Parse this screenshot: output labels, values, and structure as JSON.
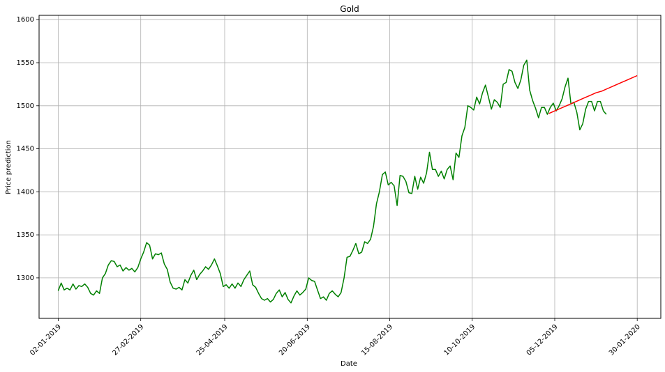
{
  "chart_data": {
    "type": "line",
    "title": "Gold",
    "xlabel": "Date",
    "ylabel": "Price prediction",
    "grid": true,
    "xlim": [
      "2018-12-20",
      "2020-02-15"
    ],
    "ylim": [
      1253,
      1605
    ],
    "x_ticks": [
      {
        "date": "2019-01-02",
        "label": "02-01-2019"
      },
      {
        "date": "2019-02-27",
        "label": "27-02-2019"
      },
      {
        "date": "2019-04-25",
        "label": "25-04-2019"
      },
      {
        "date": "2019-06-20",
        "label": "20-06-2019"
      },
      {
        "date": "2019-08-15",
        "label": "15-08-2019"
      },
      {
        "date": "2019-10-10",
        "label": "10-10-2019"
      },
      {
        "date": "2019-12-05",
        "label": "05-12-2019"
      },
      {
        "date": "2020-01-30",
        "label": "30-01-2020"
      }
    ],
    "y_ticks": [
      1300,
      1350,
      1400,
      1450,
      1500,
      1550,
      1600
    ],
    "series": [
      {
        "color": "#008000",
        "points": [
          [
            "2019-01-02",
            1285
          ],
          [
            "2019-01-04",
            1294
          ],
          [
            "2019-01-06",
            1286
          ],
          [
            "2019-01-08",
            1288
          ],
          [
            "2019-01-10",
            1286
          ],
          [
            "2019-01-12",
            1293
          ],
          [
            "2019-01-14",
            1287
          ],
          [
            "2019-01-16",
            1291
          ],
          [
            "2019-01-18",
            1290
          ],
          [
            "2019-01-20",
            1293
          ],
          [
            "2019-01-22",
            1289
          ],
          [
            "2019-01-24",
            1282
          ],
          [
            "2019-01-26",
            1280
          ],
          [
            "2019-01-28",
            1285
          ],
          [
            "2019-01-30",
            1282
          ],
          [
            "2019-02-01",
            1300
          ],
          [
            "2019-02-03",
            1305
          ],
          [
            "2019-02-05",
            1315
          ],
          [
            "2019-02-07",
            1320
          ],
          [
            "2019-02-09",
            1319
          ],
          [
            "2019-02-11",
            1313
          ],
          [
            "2019-02-13",
            1315
          ],
          [
            "2019-02-15",
            1308
          ],
          [
            "2019-02-17",
            1312
          ],
          [
            "2019-02-19",
            1309
          ],
          [
            "2019-02-21",
            1311
          ],
          [
            "2019-02-23",
            1307
          ],
          [
            "2019-02-25",
            1312
          ],
          [
            "2019-02-27",
            1322
          ],
          [
            "2019-03-01",
            1330
          ],
          [
            "2019-03-03",
            1341
          ],
          [
            "2019-03-05",
            1338
          ],
          [
            "2019-03-07",
            1322
          ],
          [
            "2019-03-09",
            1328
          ],
          [
            "2019-03-11",
            1327
          ],
          [
            "2019-03-13",
            1329
          ],
          [
            "2019-03-15",
            1316
          ],
          [
            "2019-03-17",
            1310
          ],
          [
            "2019-03-19",
            1295
          ],
          [
            "2019-03-21",
            1288
          ],
          [
            "2019-03-23",
            1287
          ],
          [
            "2019-03-25",
            1289
          ],
          [
            "2019-03-27",
            1286
          ],
          [
            "2019-03-29",
            1298
          ],
          [
            "2019-03-31",
            1294
          ],
          [
            "2019-04-02",
            1303
          ],
          [
            "2019-04-04",
            1309
          ],
          [
            "2019-04-06",
            1298
          ],
          [
            "2019-04-08",
            1304
          ],
          [
            "2019-04-10",
            1308
          ],
          [
            "2019-04-12",
            1313
          ],
          [
            "2019-04-14",
            1310
          ],
          [
            "2019-04-16",
            1315
          ],
          [
            "2019-04-18",
            1322
          ],
          [
            "2019-04-20",
            1314
          ],
          [
            "2019-04-22",
            1305
          ],
          [
            "2019-04-24",
            1290
          ],
          [
            "2019-04-26",
            1292
          ],
          [
            "2019-04-28",
            1288
          ],
          [
            "2019-04-30",
            1293
          ],
          [
            "2019-05-02",
            1288
          ],
          [
            "2019-05-04",
            1294
          ],
          [
            "2019-05-06",
            1290
          ],
          [
            "2019-05-08",
            1298
          ],
          [
            "2019-05-10",
            1303
          ],
          [
            "2019-05-12",
            1308
          ],
          [
            "2019-05-14",
            1292
          ],
          [
            "2019-05-16",
            1289
          ],
          [
            "2019-05-18",
            1282
          ],
          [
            "2019-05-20",
            1276
          ],
          [
            "2019-05-22",
            1274
          ],
          [
            "2019-05-24",
            1276
          ],
          [
            "2019-05-26",
            1272
          ],
          [
            "2019-05-28",
            1275
          ],
          [
            "2019-05-30",
            1282
          ],
          [
            "2019-06-01",
            1286
          ],
          [
            "2019-06-03",
            1278
          ],
          [
            "2019-06-05",
            1283
          ],
          [
            "2019-06-07",
            1275
          ],
          [
            "2019-06-09",
            1271
          ],
          [
            "2019-06-11",
            1279
          ],
          [
            "2019-06-13",
            1285
          ],
          [
            "2019-06-15",
            1280
          ],
          [
            "2019-06-17",
            1283
          ],
          [
            "2019-06-19",
            1287
          ],
          [
            "2019-06-21",
            1300
          ],
          [
            "2019-06-23",
            1297
          ],
          [
            "2019-06-25",
            1296
          ],
          [
            "2019-06-27",
            1286
          ],
          [
            "2019-06-29",
            1276
          ],
          [
            "2019-07-01",
            1278
          ],
          [
            "2019-07-03",
            1274
          ],
          [
            "2019-07-05",
            1282
          ],
          [
            "2019-07-07",
            1285
          ],
          [
            "2019-07-09",
            1281
          ],
          [
            "2019-07-11",
            1278
          ],
          [
            "2019-07-13",
            1283
          ],
          [
            "2019-07-15",
            1300
          ],
          [
            "2019-07-17",
            1324
          ],
          [
            "2019-07-19",
            1325
          ],
          [
            "2019-07-21",
            1332
          ],
          [
            "2019-07-23",
            1340
          ],
          [
            "2019-07-25",
            1328
          ],
          [
            "2019-07-27",
            1330
          ],
          [
            "2019-07-29",
            1342
          ],
          [
            "2019-07-31",
            1340
          ],
          [
            "2019-08-02",
            1345
          ],
          [
            "2019-08-04",
            1360
          ],
          [
            "2019-08-06",
            1386
          ],
          [
            "2019-08-08",
            1400
          ],
          [
            "2019-08-10",
            1420
          ],
          [
            "2019-08-12",
            1423
          ],
          [
            "2019-08-14",
            1408
          ],
          [
            "2019-08-16",
            1411
          ],
          [
            "2019-08-18",
            1407
          ],
          [
            "2019-08-20",
            1384
          ],
          [
            "2019-08-22",
            1419
          ],
          [
            "2019-08-24",
            1418
          ],
          [
            "2019-08-26",
            1412
          ],
          [
            "2019-08-28",
            1399
          ],
          [
            "2019-08-30",
            1398
          ],
          [
            "2019-09-01",
            1418
          ],
          [
            "2019-09-03",
            1403
          ],
          [
            "2019-09-05",
            1417
          ],
          [
            "2019-09-07",
            1410
          ],
          [
            "2019-09-09",
            1422
          ],
          [
            "2019-09-11",
            1446
          ],
          [
            "2019-09-13",
            1426
          ],
          [
            "2019-09-15",
            1426
          ],
          [
            "2019-09-17",
            1418
          ],
          [
            "2019-09-19",
            1424
          ],
          [
            "2019-09-21",
            1415
          ],
          [
            "2019-09-23",
            1426
          ],
          [
            "2019-09-25",
            1430
          ],
          [
            "2019-09-27",
            1414
          ],
          [
            "2019-09-29",
            1445
          ],
          [
            "2019-10-01",
            1440
          ],
          [
            "2019-10-03",
            1465
          ],
          [
            "2019-10-05",
            1475
          ],
          [
            "2019-10-07",
            1500
          ],
          [
            "2019-10-09",
            1498
          ],
          [
            "2019-10-11",
            1495
          ],
          [
            "2019-10-13",
            1510
          ],
          [
            "2019-10-15",
            1502
          ],
          [
            "2019-10-17",
            1515
          ],
          [
            "2019-10-19",
            1524
          ],
          [
            "2019-10-21",
            1510
          ],
          [
            "2019-10-23",
            1496
          ],
          [
            "2019-10-25",
            1507
          ],
          [
            "2019-10-27",
            1504
          ],
          [
            "2019-10-29",
            1498
          ],
          [
            "2019-10-31",
            1525
          ],
          [
            "2019-11-02",
            1527
          ],
          [
            "2019-11-04",
            1542
          ],
          [
            "2019-11-06",
            1540
          ],
          [
            "2019-11-08",
            1527
          ],
          [
            "2019-11-10",
            1520
          ],
          [
            "2019-11-12",
            1530
          ],
          [
            "2019-11-14",
            1547
          ],
          [
            "2019-11-16",
            1553
          ],
          [
            "2019-11-18",
            1518
          ],
          [
            "2019-11-20",
            1506
          ],
          [
            "2019-11-22",
            1497
          ],
          [
            "2019-11-24",
            1486
          ],
          [
            "2019-11-26",
            1498
          ],
          [
            "2019-11-28",
            1498
          ],
          [
            "2019-11-30",
            1490
          ],
          [
            "2019-12-02",
            1498
          ],
          [
            "2019-12-04",
            1503
          ],
          [
            "2019-12-06",
            1494
          ],
          [
            "2019-12-08",
            1500
          ],
          [
            "2019-12-10",
            1508
          ],
          [
            "2019-12-12",
            1522
          ],
          [
            "2019-12-14",
            1532
          ],
          [
            "2019-12-16",
            1502
          ],
          [
            "2019-12-18",
            1504
          ],
          [
            "2019-12-20",
            1492
          ],
          [
            "2019-12-22",
            1472
          ],
          [
            "2019-12-24",
            1479
          ],
          [
            "2019-12-26",
            1496
          ],
          [
            "2019-12-28",
            1505
          ],
          [
            "2019-12-30",
            1505
          ],
          [
            "2020-01-01",
            1494
          ],
          [
            "2020-01-03",
            1505
          ],
          [
            "2020-01-05",
            1505
          ],
          [
            "2020-01-07",
            1494
          ],
          [
            "2020-01-09",
            1490
          ]
        ]
      },
      {
        "color": "#ff0000",
        "points": [
          [
            "2019-12-01",
            1491
          ],
          [
            "2019-12-05",
            1494
          ],
          [
            "2019-12-09",
            1497
          ],
          [
            "2019-12-13",
            1500
          ],
          [
            "2019-12-17",
            1503
          ],
          [
            "2019-12-21",
            1506
          ],
          [
            "2019-12-25",
            1509
          ],
          [
            "2019-12-29",
            1512
          ],
          [
            "2020-01-02",
            1515
          ],
          [
            "2020-01-06",
            1517
          ],
          [
            "2020-01-10",
            1520
          ],
          [
            "2020-01-14",
            1523
          ],
          [
            "2020-01-18",
            1526
          ],
          [
            "2020-01-22",
            1529
          ],
          [
            "2020-01-26",
            1532
          ],
          [
            "2020-01-30",
            1535
          ]
        ]
      }
    ]
  }
}
